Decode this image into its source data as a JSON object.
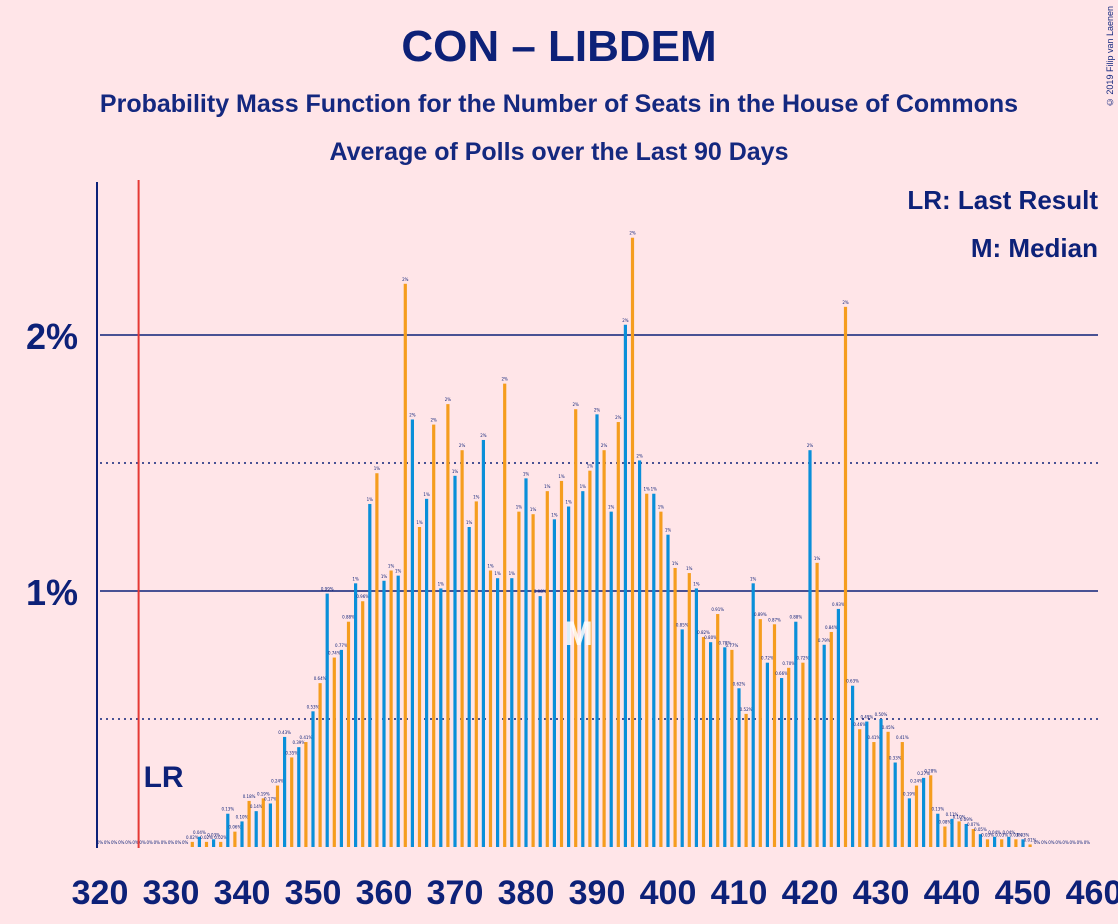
{
  "title": "CON – LIBDEM",
  "subtitle": "Probability Mass Function for the Number of Seats in the House of Commons",
  "subtitle2": "Average of Polls over the Last 90 Days",
  "copyright": "© 2019 Filip van Laenen",
  "legend": {
    "lr": "LR: Last Result",
    "m": "M: Median"
  },
  "markers": {
    "last_result_label": "LR",
    "median_label": "M"
  },
  "colors": {
    "blue": "#0A8FD9",
    "orange": "#F59D1E",
    "axis": "#0D2178",
    "lr_line": "#E53935",
    "background": "#FFE5E8"
  },
  "chart_data": {
    "type": "bar",
    "x_start": 320,
    "x_end": 459,
    "xticks": [
      "320",
      "330",
      "340",
      "350",
      "360",
      "370",
      "380",
      "390",
      "400",
      "410",
      "420",
      "430",
      "440",
      "450",
      "460"
    ],
    "yticks": [
      "1%",
      "2%"
    ],
    "ylim": [
      0,
      2.6
    ],
    "last_result": 326,
    "median": 388,
    "values": [
      0,
      0,
      0,
      0,
      0,
      0,
      0,
      0,
      0,
      0,
      0,
      0,
      0,
      0.02,
      0.04,
      0.02,
      0.03,
      0.02,
      0.13,
      0.06,
      0.1,
      0.18,
      0.14,
      0.19,
      0.17,
      0.24,
      0.43,
      0.35,
      0.39,
      0.41,
      0.53,
      0.64,
      0.99,
      0.74,
      0.77,
      0.88,
      1.03,
      0.96,
      1.34,
      1.46,
      1.04,
      1.08,
      1.06,
      2.2,
      1.67,
      1.25,
      1.36,
      1.65,
      1.01,
      1.73,
      1.45,
      1.55,
      1.25,
      1.35,
      1.59,
      1.08,
      1.05,
      1.81,
      1.05,
      1.31,
      1.44,
      1.3,
      0.98,
      1.39,
      1.28,
      1.43,
      1.33,
      1.71,
      1.39,
      1.47,
      1.69,
      1.55,
      1.31,
      1.66,
      2.04,
      2.38,
      1.51,
      1.38,
      1.38,
      1.31,
      1.22,
      1.09,
      0.85,
      1.07,
      1.01,
      0.82,
      0.8,
      0.91,
      0.78,
      0.77,
      0.62,
      0.52,
      1.03,
      0.89,
      0.72,
      0.87,
      0.66,
      0.7,
      0.88,
      0.72,
      1.55,
      1.11,
      0.79,
      0.84,
      0.93,
      2.11,
      0.63,
      0.46,
      0.49,
      0.41,
      0.5,
      0.45,
      0.33,
      0.41,
      0.19,
      0.24,
      0.27,
      0.28,
      0.13,
      0.08,
      0.11,
      0.1,
      0.09,
      0.07,
      0.05,
      0.03,
      0.04,
      0.03,
      0.04,
      0.03,
      0.03,
      0.01,
      0,
      0,
      0,
      0,
      0,
      0,
      0,
      0
    ]
  }
}
